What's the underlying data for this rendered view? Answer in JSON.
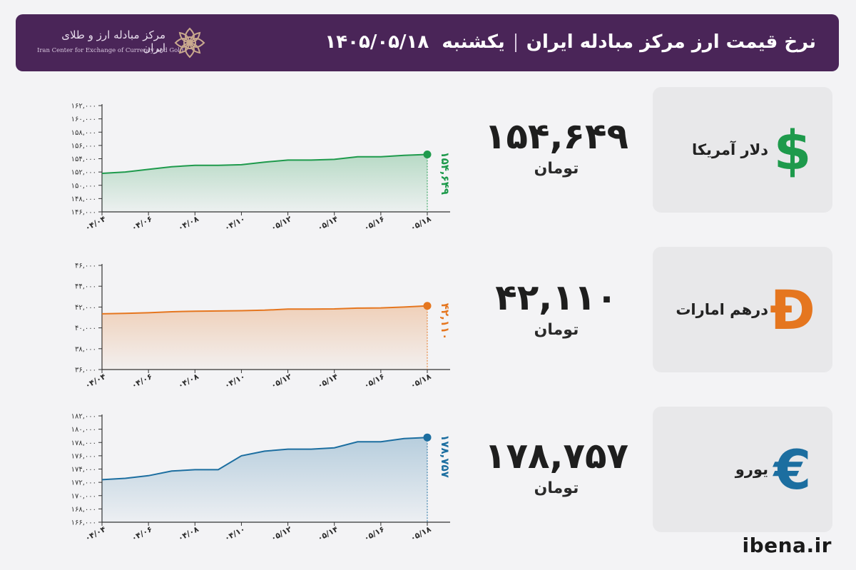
{
  "header": {
    "title": "نرخ قیمت ارز مرکز مبادله ایران",
    "day": "یکشنبه",
    "date": "۱۴۰۵/۰۵/۱۸",
    "logo_fa": "مرکز مبادله ارز و طلای ایران",
    "logo_en": "Iran Center for Exchange of Currency and Gold",
    "background": "#4a2558"
  },
  "cards": [
    {
      "name": "دلار آمریکا",
      "icon": "dollar-sign-icon",
      "symbol": "$",
      "color": "#1e9a4c",
      "price": "۱۵۴,۶۴۹",
      "unit": "تومان"
    },
    {
      "name": "درهم امارات",
      "icon": "dirham-sign-icon",
      "symbol": "Đ",
      "color": "#e5761f",
      "price": "۴۲,۱۱۰",
      "unit": "تومان"
    },
    {
      "name": "یورو",
      "icon": "euro-sign-icon",
      "symbol": "€",
      "color": "#1c6ea0",
      "price": "۱۷۸,۷۵۷",
      "unit": "تومان"
    }
  ],
  "footer": {
    "site": "ibena.ir"
  },
  "chart_data": [
    {
      "type": "area",
      "series_name": "دلار آمریکا",
      "color": "#1e9a4c",
      "x": [
        "۰۴/۰۴",
        "۰۴/۰۵",
        "۰۴/۰۶",
        "۰۴/۰۷",
        "۰۴/۰۸",
        "۰۴/۰۹",
        "۰۴/۱۰",
        "۰۴/۱۱",
        "۰۵/۱۲",
        "۰۵/۱۳",
        "۰۵/۱۴",
        "۰۵/۱۵",
        "۰۵/۱۶",
        "۰۵/۱۷",
        "۰۵/۱۸"
      ],
      "x_ticks": [
        "۰۴/۰۴",
        "۰۴/۰۶",
        "۰۴/۰۸",
        "۰۴/۱۰",
        "۰۵/۱۲",
        "۰۵/۱۴",
        "۰۵/۱۶",
        "۰۵/۱۸"
      ],
      "y": [
        151800,
        152000,
        152400,
        152800,
        153000,
        153000,
        153100,
        153500,
        153800,
        153800,
        153900,
        154300,
        154300,
        154500,
        154649
      ],
      "ylim": [
        146000,
        162000
      ],
      "yticks": [
        146000,
        148000,
        150000,
        152000,
        154000,
        156000,
        158000,
        160000,
        162000
      ],
      "ytick_labels": [
        "۱۴۶,۰۰۰",
        "۱۴۸,۰۰۰",
        "۱۵۰,۰۰۰",
        "۱۵۲,۰۰۰",
        "۱۵۴,۰۰۰",
        "۱۵۶,۰۰۰",
        "۱۵۸,۰۰۰",
        "۱۶۰,۰۰۰",
        "۱۶۲,۰۰۰"
      ],
      "last_label": "۱۵۴,۶۴۹"
    },
    {
      "type": "area",
      "series_name": "درهم امارات",
      "color": "#e5761f",
      "x": [
        "۰۴/۰۴",
        "۰۴/۰۵",
        "۰۴/۰۶",
        "۰۴/۰۷",
        "۰۴/۰۸",
        "۰۴/۰۹",
        "۰۴/۱۰",
        "۰۴/۱۱",
        "۰۵/۱۲",
        "۰۵/۱۳",
        "۰۵/۱۴",
        "۰۵/۱۵",
        "۰۵/۱۶",
        "۰۵/۱۷",
        "۰۵/۱۸"
      ],
      "x_ticks": [
        "۰۴/۰۴",
        "۰۴/۰۶",
        "۰۴/۰۸",
        "۰۴/۱۰",
        "۰۵/۱۲",
        "۰۵/۱۴",
        "۰۵/۱۶",
        "۰۵/۱۸"
      ],
      "y": [
        41350,
        41400,
        41450,
        41550,
        41600,
        41620,
        41650,
        41700,
        41800,
        41800,
        41820,
        41900,
        41920,
        42000,
        42110
      ],
      "ylim": [
        36000,
        46000
      ],
      "yticks": [
        36000,
        38000,
        40000,
        42000,
        44000,
        46000
      ],
      "ytick_labels": [
        "۳۶,۰۰۰",
        "۳۸,۰۰۰",
        "۴۰,۰۰۰",
        "۴۲,۰۰۰",
        "۴۴,۰۰۰",
        "۴۶,۰۰۰"
      ],
      "last_label": "۴۲,۱۱۰"
    },
    {
      "type": "area",
      "series_name": "یورو",
      "color": "#1c6ea0",
      "x": [
        "۰۴/۰۴",
        "۰۴/۰۵",
        "۰۴/۰۶",
        "۰۴/۰۷",
        "۰۴/۰۸",
        "۰۴/۰۹",
        "۰۴/۱۰",
        "۰۴/۱۱",
        "۰۵/۱۲",
        "۰۵/۱۳",
        "۰۵/۱۴",
        "۰۵/۱۵",
        "۰۵/۱۶",
        "۰۵/۱۷",
        "۰۵/۱۸"
      ],
      "x_ticks": [
        "۰۴/۰۴",
        "۰۴/۰۶",
        "۰۴/۰۸",
        "۰۴/۱۰",
        "۰۵/۱۲",
        "۰۵/۱۴",
        "۰۵/۱۶",
        "۰۵/۱۸"
      ],
      "y": [
        172400,
        172600,
        173000,
        173700,
        173900,
        173900,
        176000,
        176700,
        177000,
        177000,
        177200,
        178100,
        178100,
        178600,
        178757
      ],
      "ylim": [
        166000,
        182000
      ],
      "yticks": [
        166000,
        168000,
        170000,
        172000,
        174000,
        176000,
        178000,
        180000,
        182000
      ],
      "ytick_labels": [
        "۱۶۶,۰۰۰",
        "۱۶۸,۰۰۰",
        "۱۷۰,۰۰۰",
        "۱۷۲,۰۰۰",
        "۱۷۴,۰۰۰",
        "۱۷۶,۰۰۰",
        "۱۷۸,۰۰۰",
        "۱۸۰,۰۰۰",
        "۱۸۲,۰۰۰"
      ],
      "last_label": "۱۷۸,۷۵۷"
    }
  ]
}
